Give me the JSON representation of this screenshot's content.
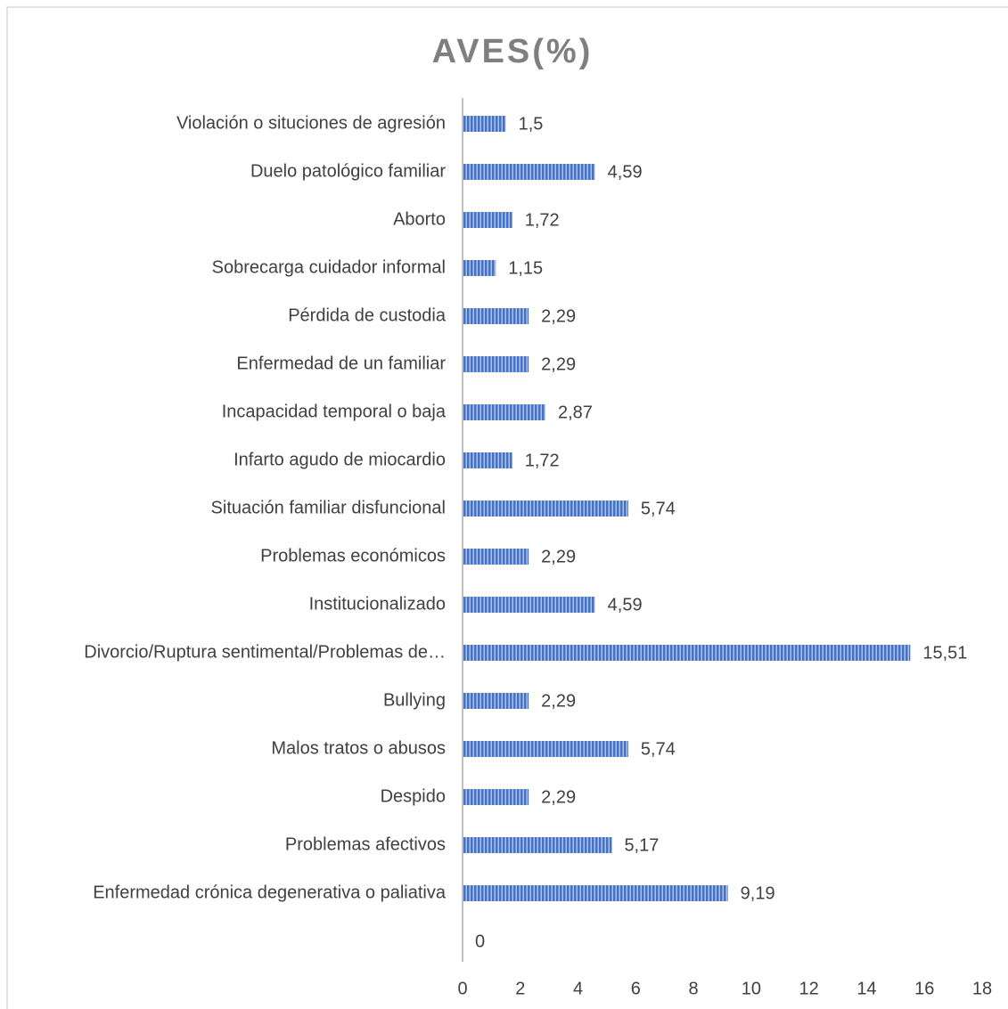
{
  "chart_data": {
    "type": "bar",
    "orientation": "horizontal",
    "title": "AVES(%)",
    "categories": [
      "Violación o situciones de agresión",
      "Duelo patológico familiar",
      "Aborto",
      "Sobrecarga cuidador informal",
      "Pérdida de custodia",
      "Enfermedad de un familiar",
      "Incapacidad temporal o baja",
      "Infarto agudo de miocardio",
      "Situación familiar disfuncional",
      "Problemas económicos",
      "Institucionalizado",
      "Divorcio/Ruptura sentimental/Problemas de…",
      "Bullying",
      "Malos tratos o abusos",
      "Despido",
      "Problemas afectivos",
      "Enfermedad crónica degenerativa o paliativa",
      null
    ],
    "values": [
      1.5,
      4.59,
      1.72,
      1.15,
      2.29,
      2.29,
      2.87,
      1.72,
      5.74,
      2.29,
      4.59,
      15.51,
      2.29,
      5.74,
      2.29,
      5.17,
      9.19,
      0
    ],
    "value_labels": [
      "1,5",
      "4,59",
      "1,72",
      "1,15",
      "2,29",
      "2,29",
      "2,87",
      "1,72",
      "5,74",
      "2,29",
      "4,59",
      "15,51",
      "2,29",
      "5,74",
      "2,29",
      "5,17",
      "9,19",
      "0"
    ],
    "color": "#4472c4",
    "xlim": [
      0,
      18
    ],
    "xticks": [
      0,
      2,
      4,
      6,
      8,
      10,
      12,
      14,
      16,
      18
    ],
    "grid": false
  }
}
